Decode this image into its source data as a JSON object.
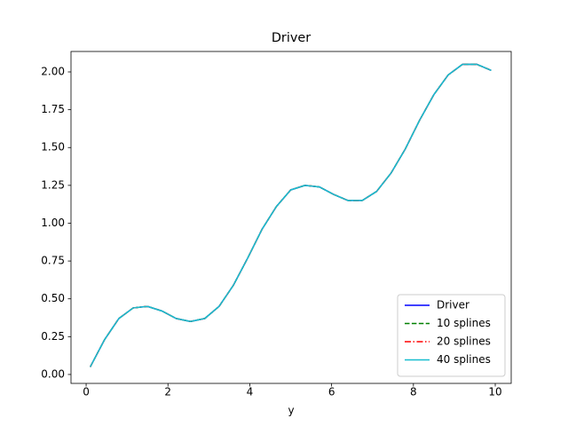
{
  "chart_data": {
    "type": "line",
    "title": "Driver",
    "xlabel": "y",
    "x": [
      0.1,
      0.45,
      0.8,
      1.15,
      1.5,
      1.85,
      2.2,
      2.55,
      2.9,
      3.25,
      3.6,
      3.95,
      4.3,
      4.65,
      5.0,
      5.35,
      5.7,
      6.05,
      6.4,
      6.75,
      7.1,
      7.45,
      7.8,
      8.15,
      8.5,
      8.85,
      9.2,
      9.55,
      9.9
    ],
    "series": [
      {
        "name": "Driver",
        "color": "#0000ff",
        "linestyle": "solid",
        "values": [
          0.05,
          0.23,
          0.37,
          0.44,
          0.45,
          0.42,
          0.37,
          0.35,
          0.37,
          0.45,
          0.59,
          0.77,
          0.96,
          1.11,
          1.22,
          1.25,
          1.24,
          1.19,
          1.15,
          1.15,
          1.21,
          1.33,
          1.49,
          1.68,
          1.85,
          1.98,
          2.05,
          2.05,
          2.01
        ]
      },
      {
        "name": "10 splines",
        "color": "#008000",
        "linestyle": "dashed",
        "values": [
          0.05,
          0.23,
          0.37,
          0.44,
          0.45,
          0.42,
          0.37,
          0.35,
          0.37,
          0.45,
          0.59,
          0.77,
          0.96,
          1.11,
          1.22,
          1.25,
          1.24,
          1.19,
          1.15,
          1.15,
          1.21,
          1.33,
          1.49,
          1.68,
          1.85,
          1.98,
          2.05,
          2.05,
          2.01
        ]
      },
      {
        "name": "20 splines",
        "color": "#ff0000",
        "linestyle": "dashdot",
        "values": [
          0.05,
          0.23,
          0.37,
          0.44,
          0.45,
          0.42,
          0.37,
          0.35,
          0.37,
          0.45,
          0.59,
          0.77,
          0.96,
          1.11,
          1.22,
          1.25,
          1.24,
          1.19,
          1.15,
          1.15,
          1.21,
          1.33,
          1.49,
          1.68,
          1.85,
          1.98,
          2.05,
          2.05,
          2.01
        ]
      },
      {
        "name": "40 splines",
        "color": "#17becf",
        "linestyle": "solid",
        "values": [
          0.05,
          0.23,
          0.37,
          0.44,
          0.45,
          0.42,
          0.37,
          0.35,
          0.37,
          0.45,
          0.59,
          0.77,
          0.96,
          1.11,
          1.22,
          1.25,
          1.24,
          1.19,
          1.15,
          1.15,
          1.21,
          1.33,
          1.49,
          1.68,
          1.85,
          1.98,
          2.05,
          2.05,
          2.01
        ]
      }
    ],
    "xlim": [
      -0.37,
      10.39
    ],
    "xticks": [
      0,
      2,
      4,
      6,
      8,
      10
    ],
    "ylim": [
      -0.059,
      2.135
    ],
    "yticks": [
      {
        "value": 0,
        "label": "0.00"
      },
      {
        "value": 0.25,
        "label": "0.25"
      },
      {
        "value": 0.5,
        "label": "0.50"
      },
      {
        "value": 0.75,
        "label": "0.75"
      },
      {
        "value": 1,
        "label": "1.00"
      },
      {
        "value": 1.25,
        "label": "1.25"
      },
      {
        "value": 1.5,
        "label": "1.50"
      },
      {
        "value": 1.75,
        "label": "1.75"
      },
      {
        "value": 2,
        "label": "2.00"
      }
    ],
    "legend": "lower right"
  }
}
